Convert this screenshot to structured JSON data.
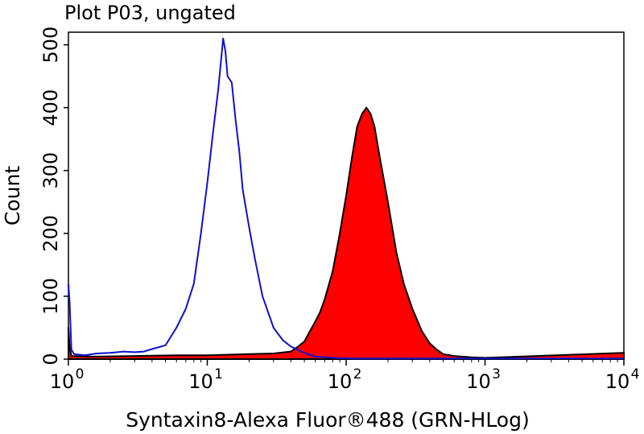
{
  "chart_data": {
    "type": "area",
    "title": "Plot P03, ungated",
    "xlabel": "Syntaxin8-Alexa Fluor®488 (GRN-HLog)",
    "ylabel": "Count",
    "x_scale": "log",
    "xlim": [
      1,
      10000
    ],
    "ylim": [
      0,
      520
    ],
    "grid": false,
    "yticks": [
      {
        "value": 0,
        "label": "0"
      },
      {
        "value": 100,
        "label": "100"
      },
      {
        "value": 200,
        "label": "200"
      },
      {
        "value": 300,
        "label": "300"
      },
      {
        "value": 400,
        "label": "400"
      },
      {
        "value": 500,
        "label": "500"
      }
    ],
    "xticks": [
      {
        "value": 1,
        "base": "10",
        "exp": "0"
      },
      {
        "value": 10,
        "base": "10",
        "exp": "1"
      },
      {
        "value": 100,
        "base": "10",
        "exp": "2"
      },
      {
        "value": 1000,
        "base": "10",
        "exp": "3"
      },
      {
        "value": 10000,
        "base": "10",
        "exp": "4"
      }
    ],
    "series": [
      {
        "color": "#1010cc",
        "fill": "none",
        "points": [
          [
            1.0,
            120
          ],
          [
            1.02,
            90
          ],
          [
            1.05,
            15
          ],
          [
            1.1,
            8
          ],
          [
            1.3,
            6
          ],
          [
            1.6,
            9
          ],
          [
            2.0,
            10
          ],
          [
            2.5,
            12
          ],
          [
            3.0,
            11
          ],
          [
            3.5,
            12
          ],
          [
            4.0,
            16
          ],
          [
            5.0,
            22
          ],
          [
            6.0,
            50
          ],
          [
            7.0,
            80
          ],
          [
            8.0,
            120
          ],
          [
            9.0,
            200
          ],
          [
            10.0,
            280
          ],
          [
            11.0,
            360
          ],
          [
            12.0,
            430
          ],
          [
            13.0,
            510
          ],
          [
            13.5,
            490
          ],
          [
            14.0,
            450
          ],
          [
            15.0,
            440
          ],
          [
            16.0,
            380
          ],
          [
            17.0,
            330
          ],
          [
            18.0,
            270
          ],
          [
            20.0,
            210
          ],
          [
            22.0,
            160
          ],
          [
            25.0,
            100
          ],
          [
            30.0,
            50
          ],
          [
            35.0,
            30
          ],
          [
            40.0,
            20
          ],
          [
            50.0,
            10
          ],
          [
            60.0,
            4
          ],
          [
            80.0,
            2
          ],
          [
            100.0,
            1
          ],
          [
            10000.0,
            1
          ]
        ]
      },
      {
        "color": "#ff0000",
        "fill": "#ff0000",
        "outline": "#000000",
        "points": [
          [
            1.0,
            50
          ],
          [
            1.02,
            20
          ],
          [
            1.05,
            5
          ],
          [
            1.5,
            4
          ],
          [
            3.0,
            5
          ],
          [
            6.0,
            6
          ],
          [
            10.0,
            6
          ],
          [
            20.0,
            8
          ],
          [
            30.0,
            9
          ],
          [
            40.0,
            12
          ],
          [
            45.0,
            20
          ],
          [
            50.0,
            28
          ],
          [
            55.0,
            45
          ],
          [
            60.0,
            60
          ],
          [
            65.0,
            75
          ],
          [
            70.0,
            95
          ],
          [
            80.0,
            140
          ],
          [
            90.0,
            200
          ],
          [
            100.0,
            260
          ],
          [
            110.0,
            320
          ],
          [
            120.0,
            370
          ],
          [
            130.0,
            390
          ],
          [
            140.0,
            400
          ],
          [
            150.0,
            390
          ],
          [
            160.0,
            370
          ],
          [
            175.0,
            320
          ],
          [
            200.0,
            250
          ],
          [
            230.0,
            170
          ],
          [
            260.0,
            120
          ],
          [
            300.0,
            80
          ],
          [
            350.0,
            45
          ],
          [
            400.0,
            25
          ],
          [
            450.0,
            15
          ],
          [
            500.0,
            8
          ],
          [
            600.0,
            5
          ],
          [
            800.0,
            3
          ],
          [
            1000.0,
            2
          ],
          [
            10000.0,
            10
          ]
        ]
      }
    ]
  }
}
